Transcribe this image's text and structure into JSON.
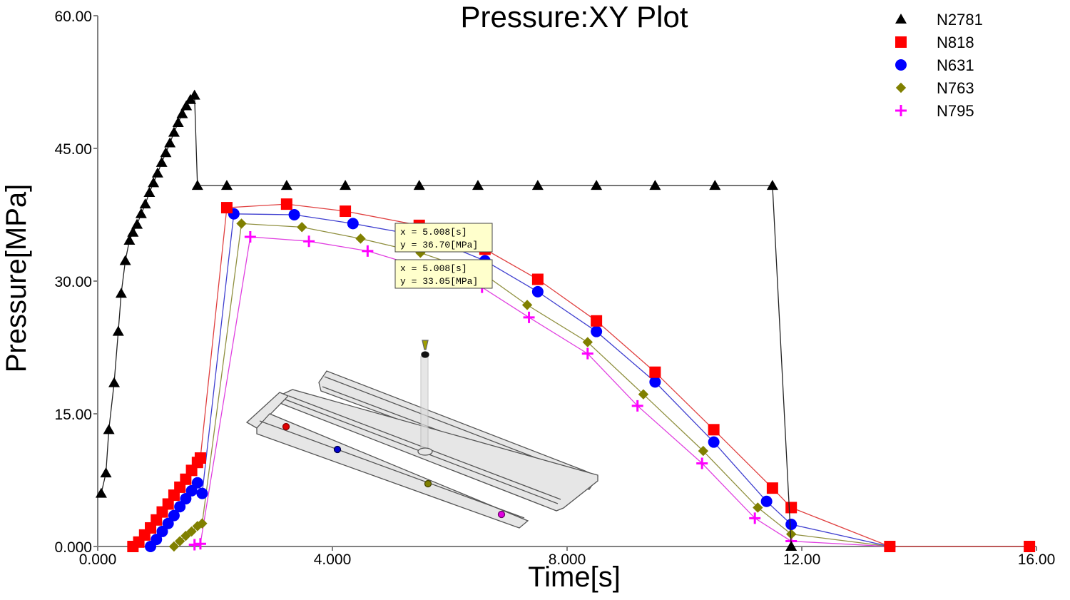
{
  "chart_data": {
    "type": "line",
    "title": "Pressure:XY Plot",
    "xlabel": "Time[s]",
    "ylabel": "Pressure[MPa]",
    "xlim": [
      0,
      16
    ],
    "ylim": [
      0,
      60
    ],
    "x_ticks": [
      "0.000",
      "4.000",
      "8.000",
      "12.00",
      "16.00"
    ],
    "x_tick_values": [
      0,
      4,
      8,
      12,
      16
    ],
    "y_ticks": [
      "0.000",
      "15.00",
      "30.00",
      "45.00",
      "60.00"
    ],
    "y_tick_values": [
      0,
      15,
      30,
      45,
      60
    ],
    "grid": false,
    "legend_position": "top-right",
    "series": [
      {
        "name": "N2781",
        "marker": "triangle",
        "color": "#000000",
        "points": [
          [
            0.06,
            6.0
          ],
          [
            0.14,
            8.3
          ],
          [
            0.19,
            13.2
          ],
          [
            0.28,
            18.5
          ],
          [
            0.35,
            24.3
          ],
          [
            0.4,
            28.6
          ],
          [
            0.47,
            32.3
          ],
          [
            0.54,
            34.6
          ],
          [
            0.6,
            35.5
          ],
          [
            0.67,
            36.4
          ],
          [
            0.74,
            37.6
          ],
          [
            0.81,
            38.7
          ],
          [
            0.88,
            40.0
          ],
          [
            0.95,
            41.1
          ],
          [
            1.02,
            42.2
          ],
          [
            1.09,
            43.4
          ],
          [
            1.16,
            44.5
          ],
          [
            1.23,
            45.6
          ],
          [
            1.3,
            46.8
          ],
          [
            1.37,
            47.9
          ],
          [
            1.44,
            48.9
          ],
          [
            1.51,
            49.8
          ],
          [
            1.58,
            50.5
          ],
          [
            1.65,
            51.0
          ],
          [
            1.7,
            40.8
          ],
          [
            2.2,
            40.8
          ],
          [
            3.22,
            40.8
          ],
          [
            4.22,
            40.8
          ],
          [
            5.48,
            40.8
          ],
          [
            6.48,
            40.8
          ],
          [
            7.5,
            40.8
          ],
          [
            8.5,
            40.8
          ],
          [
            9.5,
            40.8
          ],
          [
            10.52,
            40.8
          ],
          [
            11.5,
            40.8
          ],
          [
            11.82,
            0.0
          ]
        ]
      },
      {
        "name": "N818",
        "marker": "square",
        "color": "#ff0000",
        "points": [
          [
            0.6,
            0.0
          ],
          [
            0.7,
            0.5
          ],
          [
            0.8,
            1.3
          ],
          [
            0.9,
            2.1
          ],
          [
            1.0,
            3.0
          ],
          [
            1.1,
            3.9
          ],
          [
            1.2,
            4.8
          ],
          [
            1.3,
            5.8
          ],
          [
            1.4,
            6.7
          ],
          [
            1.5,
            7.6
          ],
          [
            1.6,
            8.6
          ],
          [
            1.7,
            9.5
          ],
          [
            1.75,
            10.0
          ],
          [
            2.2,
            38.3
          ],
          [
            3.22,
            38.7
          ],
          [
            4.22,
            37.9
          ],
          [
            5.48,
            36.3
          ],
          [
            6.6,
            33.6
          ],
          [
            7.5,
            30.2
          ],
          [
            8.5,
            25.5
          ],
          [
            9.5,
            19.7
          ],
          [
            10.5,
            13.2
          ],
          [
            11.5,
            6.6
          ],
          [
            11.82,
            4.4
          ],
          [
            13.5,
            0.0
          ],
          [
            15.88,
            0.0
          ]
        ]
      },
      {
        "name": "N631",
        "marker": "circle",
        "color": "#0000ff",
        "points": [
          [
            0.9,
            0.0
          ],
          [
            1.0,
            0.8
          ],
          [
            1.1,
            1.7
          ],
          [
            1.2,
            2.6
          ],
          [
            1.3,
            3.5
          ],
          [
            1.4,
            4.5
          ],
          [
            1.5,
            5.4
          ],
          [
            1.6,
            6.3
          ],
          [
            1.7,
            7.2
          ],
          [
            1.78,
            6.0
          ],
          [
            2.32,
            37.6
          ],
          [
            3.35,
            37.5
          ],
          [
            4.35,
            36.5
          ],
          [
            5.6,
            35.0
          ],
          [
            6.6,
            32.3
          ],
          [
            7.5,
            28.8
          ],
          [
            8.5,
            24.3
          ],
          [
            9.5,
            18.6
          ],
          [
            10.5,
            11.8
          ],
          [
            11.4,
            5.1
          ],
          [
            11.82,
            2.5
          ],
          [
            13.5,
            0.0
          ]
        ]
      },
      {
        "name": "N763",
        "marker": "diamond",
        "color": "#808000",
        "points": [
          [
            1.3,
            0.0
          ],
          [
            1.4,
            0.6
          ],
          [
            1.5,
            1.2
          ],
          [
            1.6,
            1.7
          ],
          [
            1.7,
            2.3
          ],
          [
            1.78,
            2.6
          ],
          [
            2.45,
            36.5
          ],
          [
            3.48,
            36.1
          ],
          [
            4.48,
            34.8
          ],
          [
            5.5,
            33.2
          ],
          [
            6.6,
            30.7
          ],
          [
            7.32,
            27.3
          ],
          [
            8.35,
            23.1
          ],
          [
            9.3,
            17.2
          ],
          [
            10.32,
            10.8
          ],
          [
            11.25,
            4.4
          ],
          [
            11.82,
            1.4
          ],
          [
            13.5,
            0.0
          ]
        ]
      },
      {
        "name": "N795",
        "marker": "plus",
        "color": "#ff00ff",
        "points": [
          [
            1.65,
            0.2
          ],
          [
            1.75,
            0.3
          ],
          [
            2.6,
            35.0
          ],
          [
            3.6,
            34.5
          ],
          [
            4.6,
            33.4
          ],
          [
            5.6,
            31.4
          ],
          [
            6.55,
            29.3
          ],
          [
            7.35,
            25.9
          ],
          [
            8.35,
            21.8
          ],
          [
            9.2,
            15.9
          ],
          [
            10.3,
            9.4
          ],
          [
            11.2,
            3.2
          ],
          [
            11.82,
            0.6
          ],
          [
            13.5,
            0.0
          ]
        ]
      }
    ],
    "annotations": [
      {
        "x_label": "x = 5.008[s]",
        "y_label": "y = 36.70[MPa]"
      },
      {
        "x_label": "x = 5.008[s]",
        "y_label": "y = 33.05[MPa]"
      }
    ],
    "inset": "3D model of tensile-bar mold with sensor node markers (red, blue, olive, magenta)"
  }
}
